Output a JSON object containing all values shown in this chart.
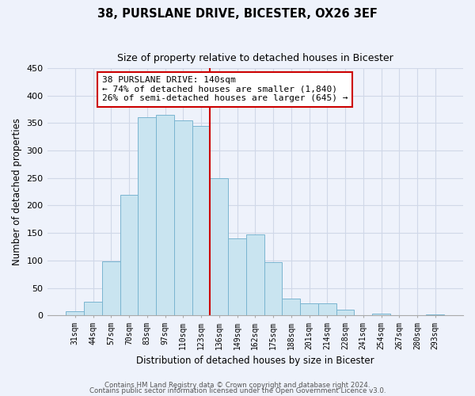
{
  "title": "38, PURSLANE DRIVE, BICESTER, OX26 3EF",
  "subtitle": "Size of property relative to detached houses in Bicester",
  "xlabel": "Distribution of detached houses by size in Bicester",
  "ylabel": "Number of detached properties",
  "bar_labels": [
    "31sqm",
    "44sqm",
    "57sqm",
    "70sqm",
    "83sqm",
    "97sqm",
    "110sqm",
    "123sqm",
    "136sqm",
    "149sqm",
    "162sqm",
    "175sqm",
    "188sqm",
    "201sqm",
    "214sqm",
    "228sqm",
    "241sqm",
    "254sqm",
    "267sqm",
    "280sqm",
    "293sqm"
  ],
  "bar_values": [
    8,
    25,
    98,
    220,
    360,
    365,
    355,
    345,
    250,
    140,
    148,
    97,
    30,
    22,
    22,
    10,
    1,
    3,
    0,
    0,
    2
  ],
  "bar_color": "#c9e4f0",
  "bar_edge_color": "#7ab5d0",
  "vline_index": 8,
  "vline_color": "#cc0000",
  "ylim": [
    0,
    450
  ],
  "yticks": [
    0,
    50,
    100,
    150,
    200,
    250,
    300,
    350,
    400,
    450
  ],
  "annotation_title": "38 PURSLANE DRIVE: 140sqm",
  "annotation_line1": "← 74% of detached houses are smaller (1,840)",
  "annotation_line2": "26% of semi-detached houses are larger (645) →",
  "annotation_box_color": "#ffffff",
  "annotation_box_edge": "#cc0000",
  "footer1": "Contains HM Land Registry data © Crown copyright and database right 2024.",
  "footer2": "Contains public sector information licensed under the Open Government Licence v3.0.",
  "background_color": "#eef2fb",
  "grid_color": "#d0d8e8"
}
